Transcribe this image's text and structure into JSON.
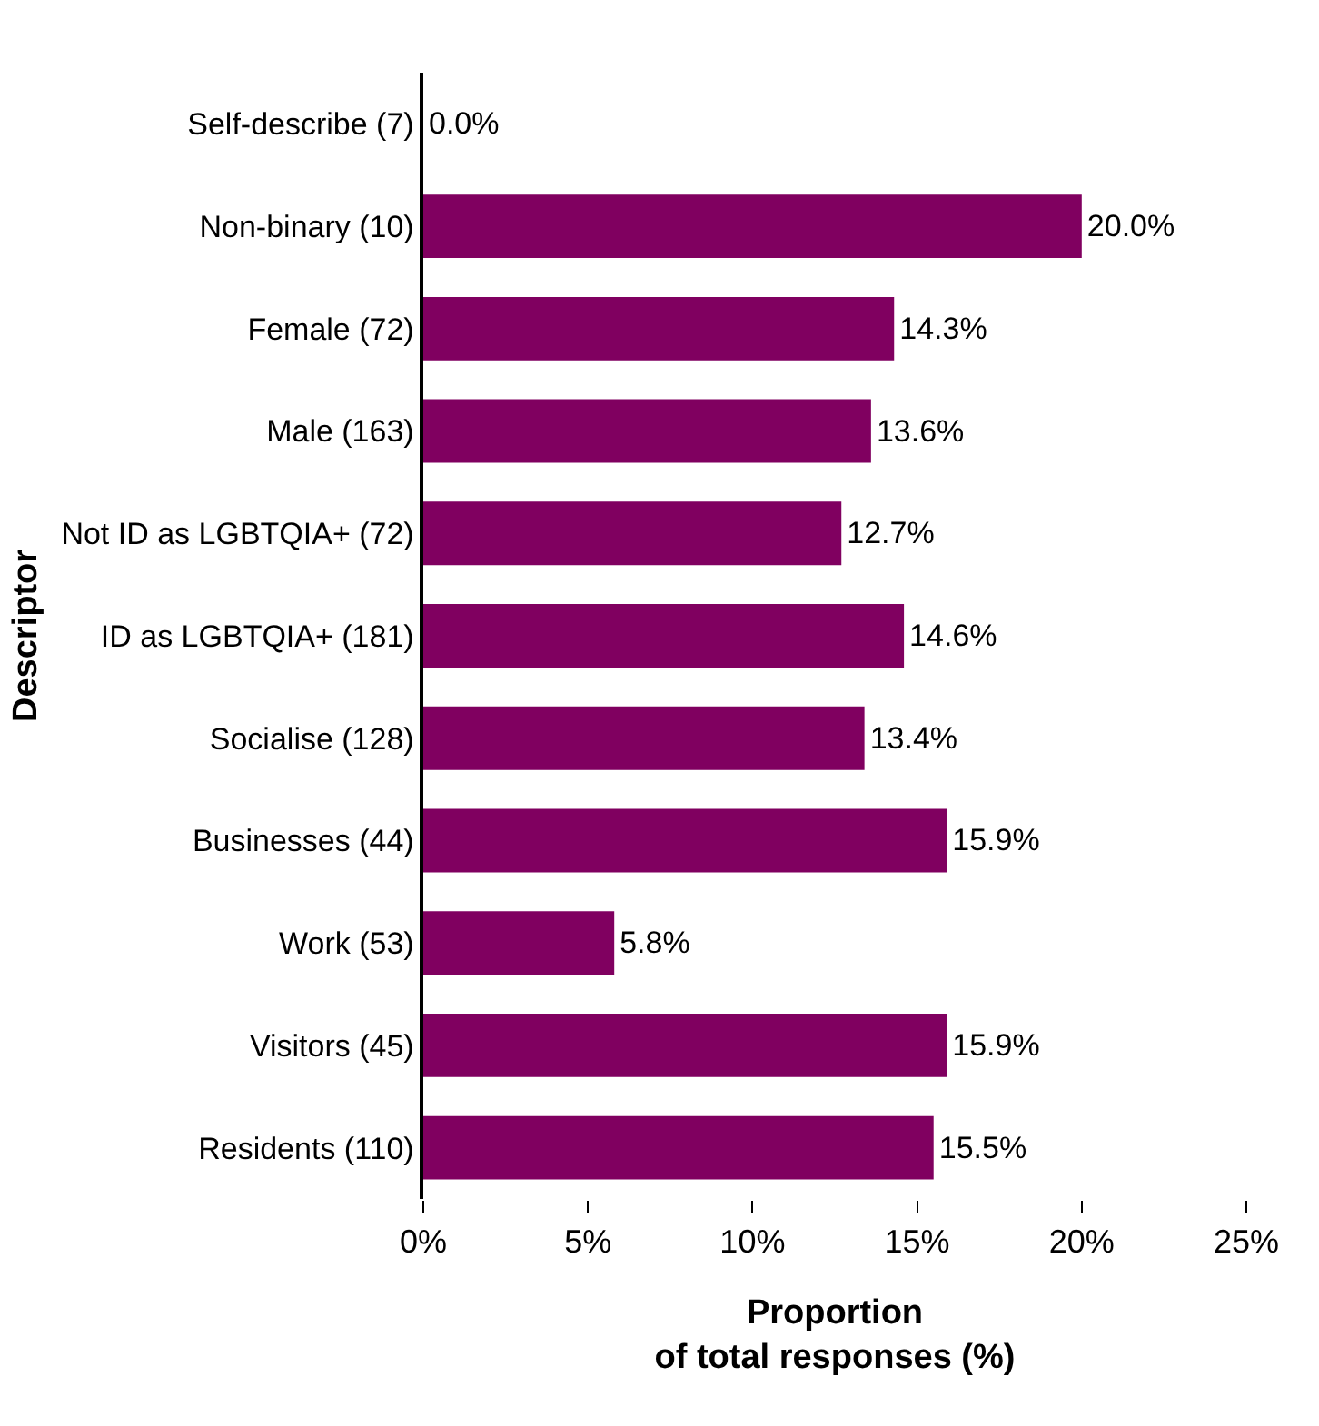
{
  "chart_data": {
    "type": "bar",
    "orientation": "horizontal",
    "xlabel": "Proportion\nof total responses (%)",
    "ylabel": "Descriptor",
    "categories": [
      "Self-describe (7)",
      "Non-binary (10)",
      "Female (72)",
      "Male (163)",
      "Not ID as LGBTQIA+ (72)",
      "ID as LGBTQIA+ (181)",
      "Socialise (128)",
      "Businesses (44)",
      "Work (53)",
      "Visitors (45)",
      "Residents (110)"
    ],
    "values": [
      0.0,
      20.0,
      14.3,
      13.6,
      12.7,
      14.6,
      13.4,
      15.9,
      5.8,
      15.9,
      15.5
    ],
    "value_labels": [
      "0.0%",
      "20.0%",
      "14.3%",
      "13.6%",
      "12.7%",
      "14.6%",
      "13.4%",
      "15.9%",
      "5.8%",
      "15.9%",
      "15.5%"
    ],
    "color": "#800060",
    "xlim": [
      0,
      25
    ],
    "xticks": [
      {
        "value": 0,
        "label": "0%"
      },
      {
        "value": 5,
        "label": "5%"
      },
      {
        "value": 10,
        "label": "10%"
      },
      {
        "value": 15,
        "label": "15%"
      },
      {
        "value": 20,
        "label": "20%"
      },
      {
        "value": 25,
        "label": "25%"
      }
    ]
  }
}
